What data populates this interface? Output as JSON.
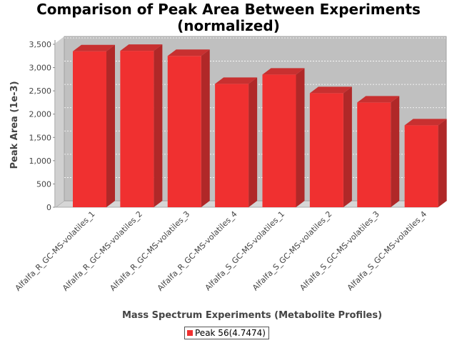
{
  "chart_data": {
    "type": "bar",
    "title_line1": "Comparison of Peak Area Between Experiments",
    "title_line2": "(normalized)",
    "xlabel": "Mass Spectrum Experiments (Metabolite Profiles)",
    "ylabel": "Peak Area (1e-3)",
    "categories": [
      "Alfalfa_R_GC-MS-volatiles_1",
      "Alfalfa_R_GC-MS-volatiles_2",
      "Alfalfa_R_GC-MS-volatiles_3",
      "Alfalfa_R_GC-MS-volatiles_4",
      "Alfalfa_S_GC-MS-volatiles_1",
      "Alfalfa_S_GC-MS-volatiles_2",
      "Alfalfa_S_GC-MS-volatiles_3",
      "Alfalfa_S_GC-MS-volatiles_4"
    ],
    "series": [
      {
        "name": "Peak 56(4.7474)",
        "values": [
          3350,
          3360,
          3250,
          2650,
          2850,
          2450,
          2250,
          1760
        ]
      }
    ],
    "ylim": [
      0,
      3500
    ],
    "yticks": [
      0,
      500,
      1000,
      1500,
      2000,
      2500,
      3000,
      3500
    ],
    "ytick_labels": [
      "0",
      "500",
      "1,000",
      "1,500",
      "2,000",
      "2,500",
      "3,000",
      "3,500"
    ],
    "grid": true,
    "legend": "bottom-center",
    "colors": {
      "bar_front": "#f03030",
      "bar_side": "#b02828",
      "bar_top": "#c83030",
      "plot_back": "#c0c0c0",
      "plot_floor": "#d6d6d6"
    }
  }
}
